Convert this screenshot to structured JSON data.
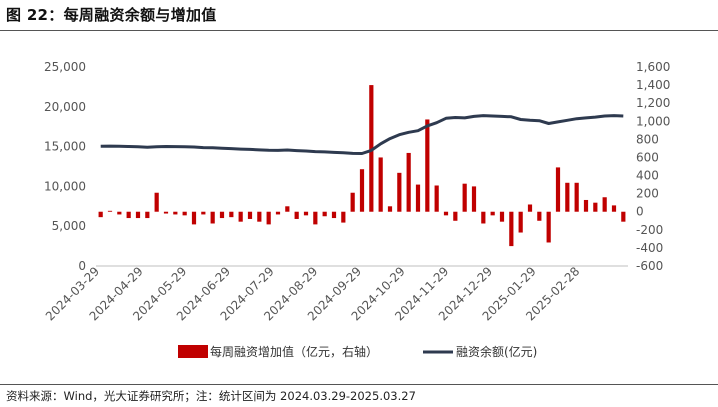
{
  "title": "图 22：每周融资余额与增加值",
  "footer": "资料来源：Wind，光大证券研究所；注：统计区间为 2024.03.29-2025.03.27",
  "colors": {
    "bar": "#C00000",
    "line": "#2E3A4F"
  },
  "chart_data": {
    "type": "bar+line",
    "title": "",
    "left_axis": {
      "ticks": [
        "0",
        "5,000",
        "10,000",
        "15,000",
        "20,000",
        "25,000"
      ],
      "lim": [
        0,
        25000
      ],
      "series": "融资余额(亿元)"
    },
    "right_axis": {
      "ticks": [
        "-600",
        "-400",
        "-200",
        "0",
        "200",
        "400",
        "600",
        "800",
        "1,000",
        "1,200",
        "1,400",
        "1,600"
      ],
      "lim": [
        -600,
        1600
      ],
      "series": "每周融资增加值（亿元，右轴）"
    },
    "x_tick_labels": [
      "2024-03-29",
      "2024-04-29",
      "2024-05-29",
      "2024-06-29",
      "2024-07-29",
      "2024-08-29",
      "2024-09-29",
      "2024-10-29",
      "2024-11-29",
      "2024-12-29",
      "2025-01-29",
      "2025-02-28"
    ],
    "legend": [
      "每周融资增加值（亿元，右轴）",
      "融资余额(亿元)"
    ],
    "series": [
      {
        "name": "每周融资增加值（亿元，右轴）",
        "axis": "right",
        "type": "bar",
        "values": [
          -60,
          10,
          -30,
          -70,
          -70,
          -70,
          210,
          -20,
          -30,
          -40,
          -140,
          -30,
          -130,
          -70,
          -60,
          -110,
          -80,
          -110,
          -140,
          -30,
          60,
          -80,
          -40,
          -140,
          -50,
          -70,
          -120,
          210,
          470,
          1400,
          600,
          60,
          430,
          650,
          300,
          1020,
          290,
          -40,
          -100,
          310,
          280,
          -130,
          -40,
          -110,
          -380,
          -230,
          80,
          -100,
          -340,
          490,
          320,
          320,
          130,
          100,
          160,
          70,
          -110
        ]
      },
      {
        "name": "融资余额(亿元)",
        "axis": "left",
        "type": "line",
        "values": [
          15050,
          15060,
          15040,
          15010,
          14970,
          14920,
          14980,
          15010,
          15000,
          14990,
          14950,
          14880,
          14850,
          14800,
          14750,
          14690,
          14650,
          14580,
          14530,
          14520,
          14570,
          14500,
          14450,
          14370,
          14330,
          14270,
          14230,
          14150,
          14130,
          14520,
          15350,
          16000,
          16500,
          16800,
          17000,
          17600,
          18000,
          18550,
          18650,
          18600,
          18800,
          18900,
          18850,
          18800,
          18750,
          18400,
          18300,
          18250,
          17900,
          18100,
          18300,
          18500,
          18600,
          18700,
          18850,
          18900,
          18850
        ]
      }
    ]
  }
}
